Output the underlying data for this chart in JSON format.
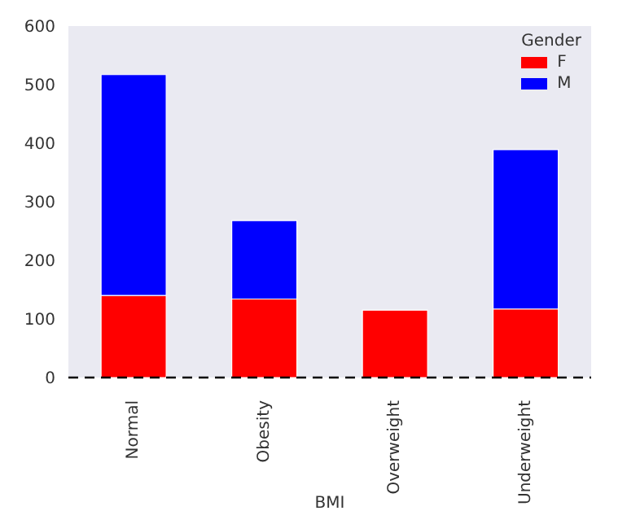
{
  "chart_data": {
    "type": "bar",
    "stacked": true,
    "xlabel": "BMI",
    "legend_title": "Gender",
    "categories": [
      "Normal",
      "Obesity",
      "Overweight",
      "Underweight"
    ],
    "series": [
      {
        "name": "F",
        "color": "#ff0000",
        "values": [
          140,
          134,
          115,
          117
        ]
      },
      {
        "name": "M",
        "color": "#0000ff",
        "values": [
          377,
          134,
          0,
          272
        ]
      }
    ],
    "ylim": [
      0,
      600
    ],
    "yticks": [
      0,
      100,
      200,
      300,
      400,
      500,
      600
    ],
    "grid": false,
    "legend": "top right",
    "ref_lines": [
      {
        "axis": "y",
        "value": 0,
        "color": "#000000",
        "line_style": "dashed"
      }
    ]
  }
}
